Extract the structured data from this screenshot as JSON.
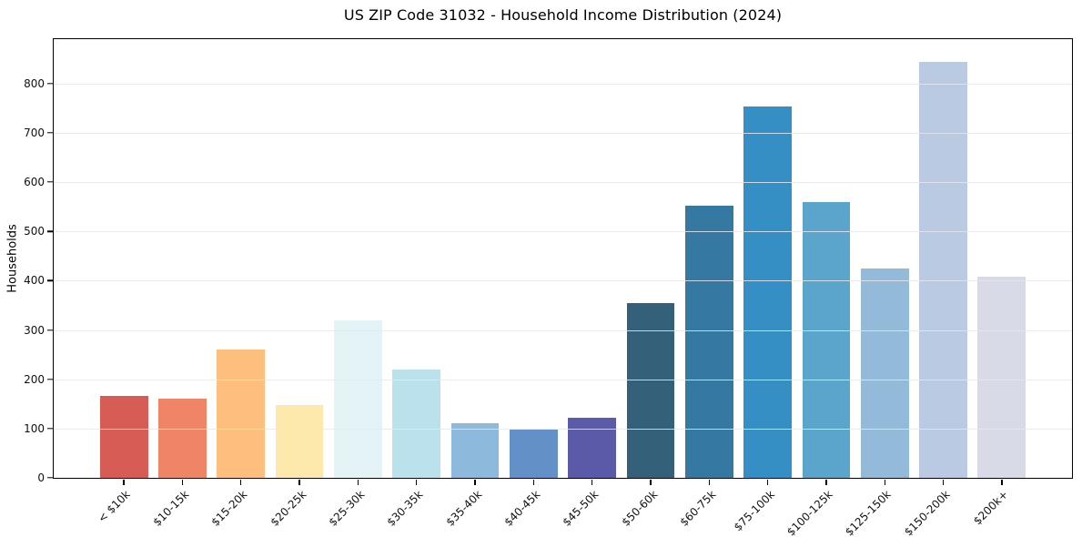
{
  "chart_data": {
    "type": "bar",
    "title": "US ZIP Code 31032 - Household Income Distribution (2024)",
    "xlabel": "",
    "ylabel": "Households",
    "categories": [
      "< $10k",
      "$10-15k",
      "$15-20k",
      "$20-25k",
      "$25-30k",
      "$30-35k",
      "$35-40k",
      "$40-45k",
      "$45-50k",
      "$50-60k",
      "$60-75k",
      "$75-100k",
      "$100-125k",
      "$125-150k",
      "$150-200k",
      "$200k+"
    ],
    "values": [
      166,
      160,
      260,
      148,
      320,
      219,
      110,
      98,
      121,
      355,
      553,
      754,
      560,
      424,
      843,
      409
    ],
    "bar_colors": [
      "#d65c55",
      "#f08466",
      "#fdbe7e",
      "#fde9ab",
      "#e4f3f5",
      "#bae1ec",
      "#8dbadc",
      "#6290c7",
      "#5a5aa8",
      "#35607a",
      "#3579a3",
      "#358fc4",
      "#5ba4cb",
      "#93bad8",
      "#b9cae2",
      "#d9dae8"
    ],
    "yticks": [
      0,
      100,
      200,
      300,
      400,
      500,
      600,
      700,
      800
    ],
    "ylim": [
      0,
      890
    ],
    "grid": "horizontal",
    "grid_color": "#e6e6ec",
    "spine_color": "#000000",
    "background_color": "#ffffff",
    "legend": "none"
  }
}
